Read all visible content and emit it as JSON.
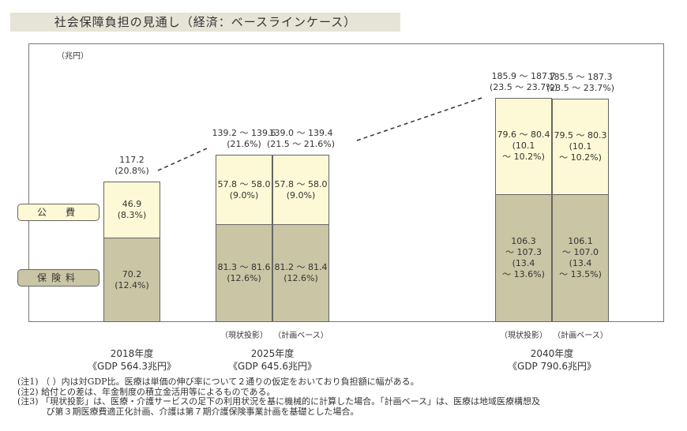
{
  "chart_data": {
    "type": "bar",
    "stacked": true,
    "title": "社会保障負担の見通し（経済：ベースラインケース）",
    "unit_label": "（兆円）",
    "legend": [
      "公　費",
      "保険料"
    ],
    "colors": {
      "public": "#fdf9d6",
      "insurance": "#c9c5a5"
    },
    "groups": [
      {
        "year": "2018年度",
        "gdp": "《GDP 564.3兆円》",
        "bars": [
          {
            "caption": "",
            "total_label": "117.2\n(20.8%)",
            "public": 46.9,
            "public_label": "46.9\n(8.3%)",
            "insurance": 70.2,
            "insurance_label": "70.2\n(12.4%)"
          }
        ]
      },
      {
        "year": "2025年度",
        "gdp": "《GDP 645.6兆円》",
        "bars": [
          {
            "caption": "（現状投影）",
            "total_label": "139.2 ～ 139.6\n(21.6%)",
            "public": 57.9,
            "public_label": "57.8 ～ 58.0\n(9.0%)",
            "insurance": 81.45,
            "insurance_label": "81.3 ～ 81.6\n(12.6%)"
          },
          {
            "caption": "（計画ベース）",
            "total_label": "139.0 ～ 139.4\n(21.5 ～ 21.6%)",
            "public": 57.9,
            "public_label": "57.8 ～ 58.0\n(9.0%)",
            "insurance": 81.3,
            "insurance_label": "81.2 ～ 81.4\n(12.6%)"
          }
        ]
      },
      {
        "year": "2040年度",
        "gdp": "《GDP 790.6兆円》",
        "bars": [
          {
            "caption": "（現状投影）",
            "total_label": "185.9 ～ 187.7\n(23.5 ～ 23.7%)",
            "public": 80.0,
            "public_label": "79.6 ～ 80.4\n(10.1\n～ 10.2%)",
            "insurance": 106.8,
            "insurance_label": "106.3\n～ 107.3\n(13.4\n～ 13.6%)"
          },
          {
            "caption": "（計画ベース）",
            "total_label": "185.5 ～ 187.3\n(23.5 ～ 23.7%)",
            "public": 79.9,
            "public_label": "79.5 ～ 80.3\n(10.1\n～ 10.2%)",
            "insurance": 106.55,
            "insurance_label": "106.1\n～ 107.0\n(13.4\n～ 13.5%)"
          }
        ]
      }
    ]
  },
  "notes": [
    "(注1) （ ）内は対GDP比。医療は単価の伸び率について２通りの仮定をおいており負担額に幅がある。",
    "(注2) 給付との差は、年金制度の積立金活用等によるものである。",
    "(注3) 「現状投影」は、医療・介護サービスの足下の利用状況を基に機械的に計算した場合。「計画ベース」は、医療は地域医療構想及",
    "　　　 び第３期医療費適正化計画、介護は第７期介護保険事業計画を基礎とした場合。"
  ]
}
